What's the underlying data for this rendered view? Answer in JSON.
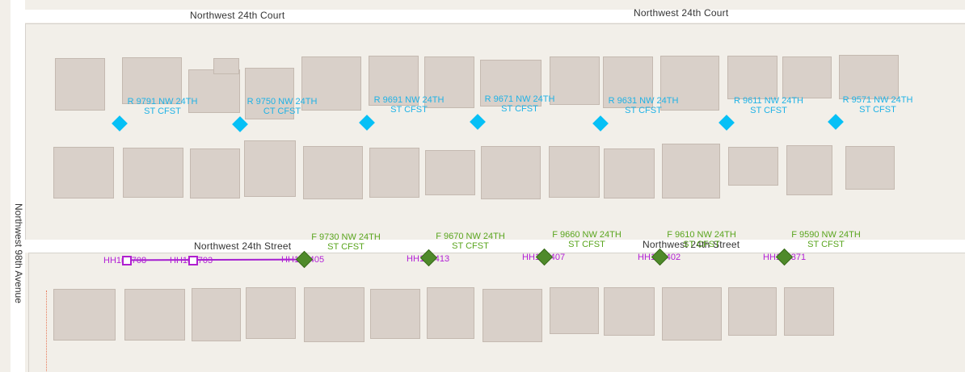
{
  "streets": {
    "court_left": "Northwest 24th Court",
    "court_right": "Northwest 24th Court",
    "street_left": "Northwest 24th Street",
    "street_right": "Northwest 24th Street",
    "avenue": "Northwest 98th Avenue"
  },
  "residential_points": [
    {
      "line1": "R 9791 NW 24TH",
      "line2": "ST CFST"
    },
    {
      "line1": "R 9750 NW 24TH",
      "line2": "CT CFST"
    },
    {
      "line1": "R 9691 NW 24TH",
      "line2": "ST CFST"
    },
    {
      "line1": "R 9671 NW 24TH",
      "line2": "ST CFST"
    },
    {
      "line1": "R 9631 NW 24TH",
      "line2": "ST CFST"
    },
    {
      "line1": "R 9611 NW 24TH",
      "line2": "ST CFST"
    },
    {
      "line1": "R 9571 NW 24TH",
      "line2": "ST CFST"
    }
  ],
  "feed_points": [
    {
      "line1": "F 9730 NW 24TH",
      "line2": "ST CFST"
    },
    {
      "line1": "F 9670 NW 24TH",
      "line2": "ST CFST"
    },
    {
      "line1": "F 9660 NW 24TH",
      "line2": "ST CFST"
    },
    {
      "line1": "F 9610 NW 24TH",
      "line2": "ST CFST"
    },
    {
      "line1": "F 9590 NW 24TH",
      "line2": "ST CFST"
    }
  ],
  "handholes": [
    {
      "label": "HH1■3708"
    },
    {
      "label": "HH1■3703"
    },
    {
      "label": "HH1■3405"
    },
    {
      "label": "HH1■3413"
    },
    {
      "label": "HH1■3407"
    },
    {
      "label": "HH1■3402"
    },
    {
      "label": "HH1■3371"
    }
  ],
  "colors": {
    "residential": "#06c0f6",
    "feed": "#5aa51e",
    "handhole": "#b21fd6",
    "building": "#d9d0c9"
  }
}
